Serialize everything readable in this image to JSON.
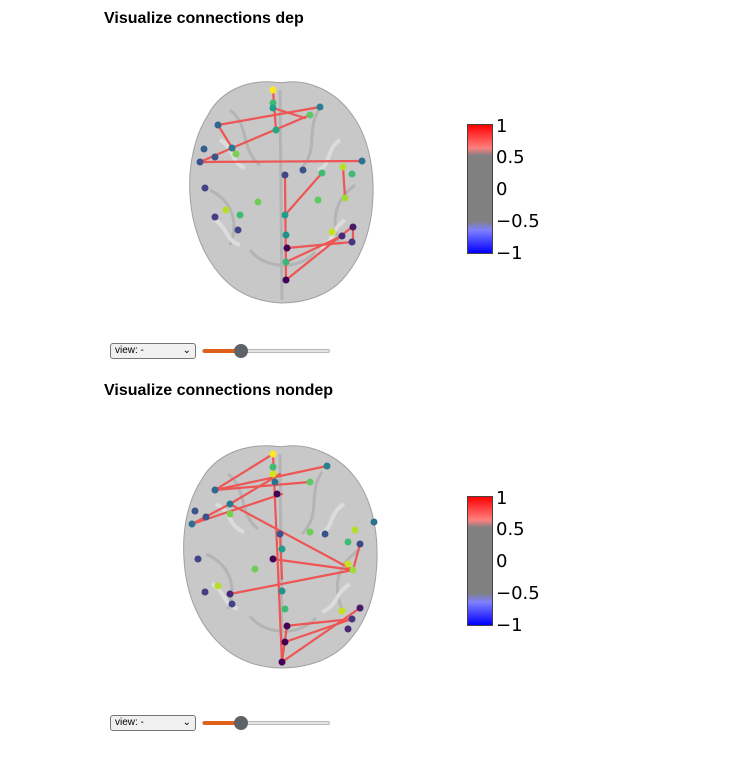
{
  "panels": [
    {
      "title": "Visualize connections dep",
      "view_select": {
        "value": "view: -"
      },
      "slider": {
        "value": 0.3
      },
      "colorbar": {
        "ticks": [
          "1",
          "0.5",
          "0",
          "−0.5",
          "−1"
        ],
        "top_color": "#ff0000",
        "bottom_color": "#0000ff"
      },
      "connection_color": "#ee5555"
    },
    {
      "title": "Visualize connections nondep",
      "view_select": {
        "value": "view: -"
      },
      "slider": {
        "value": 0.3
      },
      "colorbar": {
        "ticks": [
          "1",
          "0.5",
          "0",
          "−0.5",
          "−1"
        ],
        "top_color": "#ff0000",
        "bottom_color": "#0000ff"
      },
      "connection_color": "#ee5555"
    }
  ]
}
